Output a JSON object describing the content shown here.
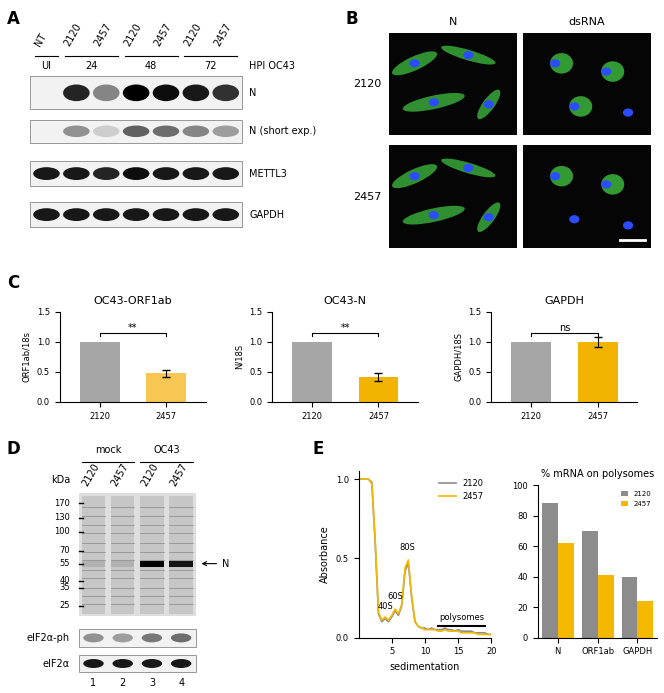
{
  "chart_data": [
    {
      "type": "bar",
      "title": "OC43-ORF1ab",
      "y_label": "ORF1ab/18s",
      "categories": [
        "2120",
        "2457"
      ],
      "values": [
        1.0,
        0.48
      ],
      "errors": [
        null,
        0.06
      ],
      "colors": [
        "#a6a6a6",
        "#f7c653"
      ],
      "significance": "**",
      "ylim": [
        0,
        1.5
      ],
      "yticks": [
        {
          "value": 0,
          "label": "0.0"
        },
        {
          "value": 0.5,
          "label": "0.5"
        },
        {
          "value": 1.0,
          "label": "1.0"
        },
        {
          "value": 1.5,
          "label": "1.5"
        }
      ]
    },
    {
      "type": "bar",
      "title": "OC43-N",
      "y_label": "N/18S",
      "categories": [
        "2120",
        "2457"
      ],
      "values": [
        1.0,
        0.42
      ],
      "errors": [
        null,
        0.07
      ],
      "colors": [
        "#a6a6a6",
        "#f2b400"
      ],
      "significance": "**",
      "ylim": [
        0,
        1.5
      ],
      "yticks": [
        {
          "value": 0,
          "label": "0.0"
        },
        {
          "value": 0.5,
          "label": "0.5"
        },
        {
          "value": 1.0,
          "label": "1.0"
        },
        {
          "value": 1.5,
          "label": "1.5"
        }
      ]
    },
    {
      "type": "bar",
      "title": "GAPDH",
      "y_label": "GAPDH/18S",
      "categories": [
        "2120",
        "2457"
      ],
      "values": [
        1.0,
        1.0
      ],
      "errors": [
        null,
        0.08
      ],
      "colors": [
        "#a6a6a6",
        "#f2b400"
      ],
      "significance": "ns",
      "ylim": [
        0,
        1.5
      ],
      "yticks": [
        {
          "value": 0,
          "label": "0.0"
        },
        {
          "value": 0.5,
          "label": "0.5"
        },
        {
          "value": 1.0,
          "label": "1.0"
        },
        {
          "value": 1.5,
          "label": "1.5"
        }
      ]
    },
    {
      "type": "line",
      "x_label": "sedimentation",
      "y_label": "Absorbance",
      "x": [
        0,
        0.5,
        1.0,
        1.5,
        2.0,
        2.5,
        3.0,
        3.5,
        4.0,
        4.5,
        5.0,
        5.5,
        6.0,
        6.5,
        7.0,
        7.5,
        8.0,
        8.5,
        9.0,
        9.5,
        10.0,
        10.5,
        11.0,
        11.5,
        12.0,
        12.5,
        13.0,
        13.5,
        14.0,
        14.5,
        15.0,
        15.5,
        16.0,
        16.5,
        17.0,
        17.5,
        18.0,
        18.5,
        19.0,
        19.5,
        20.0
      ],
      "series": [
        {
          "name": "2120",
          "color": "#8c8c8c",
          "values": [
            1.0,
            1.0,
            1.0,
            1.0,
            0.98,
            0.6,
            0.15,
            0.1,
            0.12,
            0.1,
            0.13,
            0.17,
            0.14,
            0.2,
            0.42,
            0.47,
            0.25,
            0.1,
            0.07,
            0.06,
            0.06,
            0.05,
            0.06,
            0.05,
            0.05,
            0.05,
            0.06,
            0.05,
            0.05,
            0.04,
            0.05,
            0.04,
            0.04,
            0.04,
            0.04,
            0.03,
            0.03,
            0.03,
            0.03,
            0.02,
            0.02
          ]
        },
        {
          "name": "2457",
          "color": "#f5b800",
          "values": [
            1.0,
            1.0,
            1.0,
            1.0,
            0.97,
            0.62,
            0.16,
            0.11,
            0.13,
            0.11,
            0.14,
            0.18,
            0.15,
            0.21,
            0.44,
            0.49,
            0.26,
            0.1,
            0.07,
            0.06,
            0.05,
            0.05,
            0.05,
            0.05,
            0.04,
            0.04,
            0.05,
            0.04,
            0.04,
            0.04,
            0.04,
            0.03,
            0.03,
            0.03,
            0.03,
            0.03,
            0.02,
            0.02,
            0.02,
            0.02,
            0.02
          ]
        }
      ],
      "xlim": [
        0,
        20
      ],
      "xticks": [
        5,
        10,
        15,
        20
      ],
      "ylim": [
        0,
        1.05
      ],
      "yticks": [
        {
          "value": 0,
          "label": "0.0"
        },
        {
          "value": 0.5,
          "label": "0.5"
        },
        {
          "value": 1.0,
          "label": "1.0"
        }
      ],
      "legend": "upper right",
      "annotations": [
        "40S",
        "60S",
        "80S",
        "polysomes"
      ]
    },
    {
      "type": "bar",
      "title": "% mRNA on polysomes",
      "categories": [
        "N",
        "ORF1ab",
        "GAPDH"
      ],
      "series": [
        {
          "name": "2120",
          "color": "#8c8c8c",
          "values": [
            88,
            70,
            40
          ]
        },
        {
          "name": "2457",
          "color": "#f5b800",
          "values": [
            62,
            41,
            24
          ]
        }
      ],
      "ylim": [
        0,
        100
      ],
      "yticks": [
        0,
        20,
        40,
        60,
        80,
        100
      ],
      "legend": "upper right"
    }
  ],
  "panel_letters": [
    "A",
    "B",
    "C",
    "D",
    "E"
  ],
  "panels": {
    "A": {
      "lanes": [
        "NT",
        "2120",
        "2457",
        "2120",
        "2457",
        "2120",
        "2457"
      ],
      "groups": [
        {
          "label": "UI",
          "lanes": 1
        },
        {
          "label": "24",
          "lanes": 2
        },
        {
          "label": "48",
          "lanes": 2
        },
        {
          "label": "72",
          "lanes": 2
        }
      ],
      "group_title": "HPI OC43",
      "rows": [
        {
          "label": "N",
          "bands": [
            0.0,
            0.85,
            0.45,
            1.0,
            0.95,
            0.9,
            0.8
          ]
        },
        {
          "label": "N (short exp.)",
          "bands": [
            0.0,
            0.4,
            0.15,
            0.6,
            0.55,
            0.45,
            0.35
          ]
        },
        {
          "label": "METTL3",
          "bands": [
            0.9,
            0.9,
            0.85,
            0.95,
            0.9,
            0.9,
            0.9
          ]
        },
        {
          "label": "GAPDH",
          "bands": [
            0.9,
            0.9,
            0.9,
            0.9,
            0.9,
            0.9,
            0.9
          ]
        }
      ]
    },
    "B": {
      "columns": [
        "N",
        "dsRNA"
      ],
      "rows": [
        "2120",
        "2457"
      ]
    },
    "D": {
      "groups": [
        {
          "label": "mock",
          "lanes": 2
        },
        {
          "label": "OC43",
          "lanes": 2
        }
      ],
      "lanes": [
        "2120",
        "2457",
        "2120",
        "2457"
      ],
      "unit": "kDa",
      "markers": [
        170,
        130,
        100,
        70,
        55,
        40,
        35,
        25
      ],
      "band_label": "N",
      "band_kda": 55,
      "n_band": [
        0.1,
        0.1,
        1.0,
        0.9
      ],
      "rows": [
        {
          "label": "eIF2α-ph",
          "bands": [
            0.4,
            0.35,
            0.5,
            0.55
          ]
        },
        {
          "label": "eIF2α",
          "bands": [
            0.9,
            0.9,
            0.9,
            0.9
          ]
        }
      ],
      "lane_numbers": [
        1,
        2,
        3,
        4
      ]
    }
  }
}
